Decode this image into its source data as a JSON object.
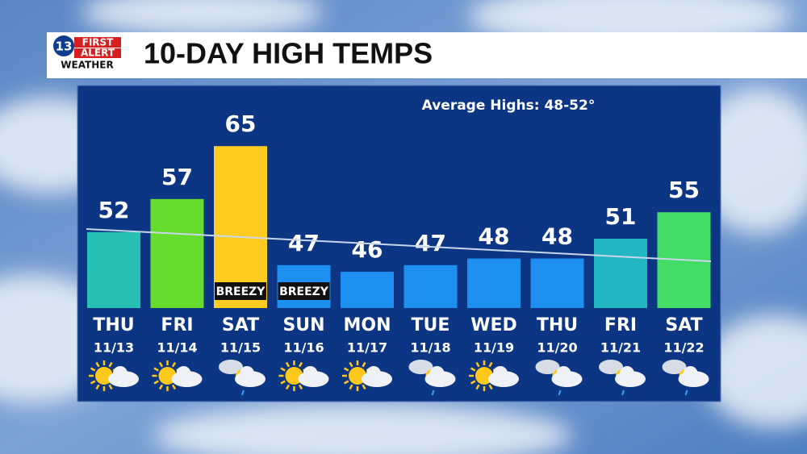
{
  "logo": {
    "number": "13",
    "line1": "FIRST",
    "line2": "ALERT",
    "line3": "WEATHER"
  },
  "chart_data": {
    "type": "bar",
    "title": "10-DAY HIGH TEMPS",
    "subtitle": "Average Highs: 48-52°",
    "categories": [
      "THU",
      "FRI",
      "SAT",
      "SUN",
      "MON",
      "TUE",
      "WED",
      "THU",
      "FRI",
      "SAT"
    ],
    "dates": [
      "11/13",
      "11/14",
      "11/15",
      "11/16",
      "11/17",
      "11/18",
      "11/19",
      "11/20",
      "11/21",
      "11/22"
    ],
    "values": [
      52,
      57,
      65,
      47,
      46,
      47,
      48,
      48,
      51,
      55
    ],
    "colors": [
      "#27c0b3",
      "#66dd2e",
      "#ffcc1f",
      "#1d8ff0",
      "#1d8ff0",
      "#1d8ff0",
      "#1d8ff0",
      "#1d8ff0",
      "#22b6c2",
      "#43dd66"
    ],
    "annotations": [
      null,
      null,
      "BREEZY",
      "BREEZY",
      null,
      null,
      null,
      null,
      null,
      null
    ]
  }
}
